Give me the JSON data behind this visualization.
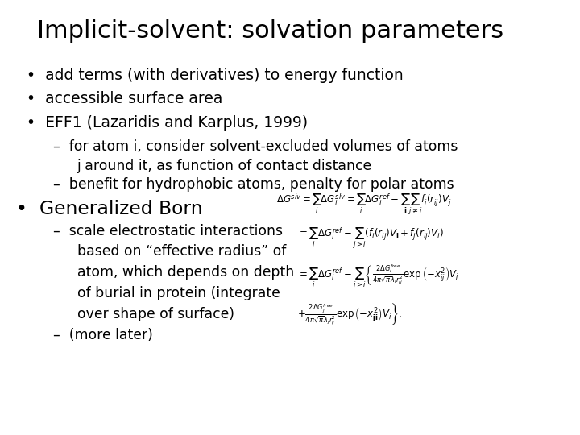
{
  "title": "Implicit-solvent: solvation parameters",
  "background_color": "#ffffff",
  "text_color": "#000000",
  "title_fontsize": 22,
  "body_fontsize": 13.5,
  "bullet1": "add terms (with derivatives) to energy function",
  "bullet2": "accessible surface area",
  "bullet3": "EFF1 (Lazaridis and Karplus, 1999)",
  "sub1": "for atom i, consider solvent-excluded volumes of atoms\n   j around it, as function of contact distance",
  "sub2": "benefit for hydrophobic atoms, penalty for polar atoms",
  "bullet4": "Generalized Born",
  "sub3_line1": "scale electrostatic interactions",
  "sub3_line2": "based on “effective radius” of",
  "sub3_line3": "atom, which depends on depth",
  "sub3_line4": "of burial in protein (integrate",
  "sub3_line5": "over shape of surface)",
  "sub4": "(more later)"
}
